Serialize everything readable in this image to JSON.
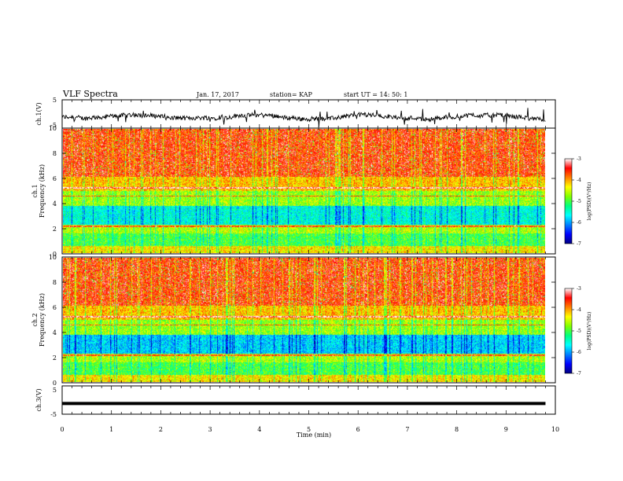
{
  "header": {
    "title": "VLF Spectra",
    "date": "Jan. 17, 2017",
    "station": "station= KAP",
    "start": "start  UT =   14: 50: 1"
  },
  "colorbar": {
    "label": "log(PSD)(V²/Hz)",
    "ticks": [
      "-3",
      "-4",
      "-5",
      "-6",
      "-7"
    ],
    "colors": [
      "#000080",
      "#0000ff",
      "#0080ff",
      "#00ffff",
      "#00ff80",
      "#80ff00",
      "#ffff00",
      "#ff8000",
      "#ff0000",
      "#ffffff"
    ]
  },
  "chart_data": [
    {
      "type": "line",
      "id": "ch1",
      "ylabel": "ch.1(V)",
      "ylim": [
        -5,
        5
      ],
      "yticks": [
        "5",
        "-5"
      ],
      "xlim": [
        0,
        10
      ],
      "note": "noisy waveform around -1 V"
    },
    {
      "type": "heatmap",
      "id": "spec1",
      "ylabel_top": "ch.1",
      "ylabel": "Frequency (kHz)",
      "ylim": [
        0,
        10
      ],
      "yticks": [
        "0",
        "2",
        "4",
        "6",
        "8",
        "10"
      ],
      "xlim": [
        0,
        9.8
      ],
      "colorbar": "log(PSD)(V²/Hz)",
      "clim": [
        -7,
        -3
      ]
    },
    {
      "type": "heatmap",
      "id": "spec2",
      "ylabel_top": "ch.2",
      "ylabel": "Frequency (kHz)",
      "ylim": [
        0,
        10
      ],
      "yticks": [
        "0",
        "2",
        "4",
        "6",
        "8",
        "10"
      ],
      "xlim": [
        0,
        9.8
      ],
      "colorbar": "log(PSD)(V²/Hz)",
      "clim": [
        -7,
        -3
      ]
    },
    {
      "type": "line",
      "id": "ch3",
      "ylabel": "ch.3(V)",
      "ylim": [
        -5,
        5
      ],
      "yticks": [
        "5",
        "-5"
      ],
      "xlim": [
        0,
        10
      ],
      "x": [
        0,
        9.8
      ],
      "y": [
        -1.2,
        -1.2
      ]
    }
  ],
  "xaxis": {
    "label": "Time (min)",
    "ticks": [
      "0",
      "1",
      "2",
      "3",
      "4",
      "5",
      "6",
      "7",
      "8",
      "9",
      "10"
    ]
  }
}
